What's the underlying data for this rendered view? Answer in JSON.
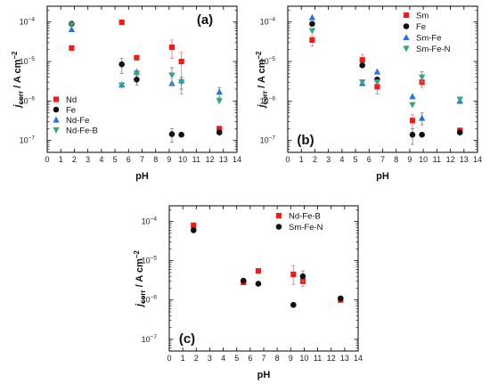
{
  "colors": {
    "red": "#e8201c",
    "black": "#111111",
    "blue": "#2d73d6",
    "green": "#3aa386",
    "error_grey": "#888888",
    "error_red": "#f08080"
  },
  "chart_data": [
    {
      "type": "scatter",
      "panel_label": "(a)",
      "xlabel": "pH",
      "ylabel": "j_corr / A cm^-2",
      "ylabel_parts": {
        "j": "j",
        "sub": "corr",
        "units": " / A cm",
        "sup": "−2"
      },
      "xlim": [
        0,
        14
      ],
      "ylim_log10": [
        -7.3,
        -3.6
      ],
      "x_ticks": [
        0,
        1,
        2,
        3,
        4,
        5,
        6,
        7,
        8,
        9,
        10,
        11,
        12,
        13,
        14
      ],
      "y_ticks": [
        {
          "exp": -7,
          "label": "10",
          "sup": "−7"
        },
        {
          "exp": -6,
          "label": "10",
          "sup": "−6"
        },
        {
          "exp": -5,
          "label": "10",
          "sup": "−5"
        },
        {
          "exp": -4,
          "label": "10",
          "sup": "−4"
        }
      ],
      "legend_position": "lower-left",
      "series": [
        {
          "name": "Nd",
          "marker": "square",
          "color": "red",
          "points": [
            {
              "x": 1.8,
              "y": 2.2e-05
            },
            {
              "x": 5.5,
              "y": 9.8e-05
            },
            {
              "x": 6.6,
              "y": 1.25e-05
            },
            {
              "x": 9.2,
              "y": 2.3e-05,
              "lo": 1.2e-05,
              "hi": 3.5e-05
            },
            {
              "x": 9.9,
              "y": 1e-05,
              "lo": 1.5e-06,
              "hi": 1.7e-05
            },
            {
              "x": 12.7,
              "y": 2e-07
            }
          ]
        },
        {
          "name": "Fe",
          "marker": "circle",
          "color": "black",
          "points": [
            {
              "x": 1.8,
              "y": 9e-05
            },
            {
              "x": 5.5,
              "y": 8.5e-06,
              "lo": 5e-06,
              "hi": 1.2e-05
            },
            {
              "x": 6.6,
              "y": 3.5e-06,
              "lo": 2.5e-06,
              "hi": 4.5e-06
            },
            {
              "x": 9.2,
              "y": 1.45e-07,
              "lo": 9e-08,
              "hi": 2e-07
            },
            {
              "x": 9.9,
              "y": 1.4e-07
            },
            {
              "x": 12.7,
              "y": 1.6e-07
            }
          ]
        },
        {
          "name": "Nd-Fe",
          "marker": "triangle-up",
          "color": "blue",
          "points": [
            {
              "x": 1.8,
              "y": 6.5e-05
            },
            {
              "x": 5.5,
              "y": 2.6e-06
            },
            {
              "x": 6.6,
              "y": 5.5e-06
            },
            {
              "x": 9.2,
              "y": 2.8e-06
            },
            {
              "x": 9.9,
              "y": 3.3e-06
            },
            {
              "x": 12.7,
              "y": 1.7e-06,
              "lo": 1.2e-06,
              "hi": 2.2e-06
            }
          ]
        },
        {
          "name": "Nd-Fe-B",
          "marker": "triangle-down",
          "color": "green",
          "points": [
            {
              "x": 1.8,
              "y": 8.5e-05
            },
            {
              "x": 5.5,
              "y": 2.5e-06
            },
            {
              "x": 6.6,
              "y": 5e-06
            },
            {
              "x": 9.2,
              "y": 4.5e-06,
              "lo": 2.5e-06,
              "hi": 7e-06
            },
            {
              "x": 9.9,
              "y": 3e-06,
              "lo": 2e-06,
              "hi": 4e-06
            },
            {
              "x": 12.7,
              "y": 1e-06
            }
          ]
        }
      ]
    },
    {
      "type": "scatter",
      "panel_label": "(b)",
      "xlabel": "pH",
      "ylabel": "j_corr / A cm^-2",
      "ylabel_parts": {
        "j": "j",
        "sub": "corr",
        "units": " / A cm",
        "sup": "−2"
      },
      "xlim": [
        0,
        14
      ],
      "ylim_log10": [
        -7.3,
        -3.6
      ],
      "x_ticks": [
        0,
        1,
        2,
        3,
        4,
        5,
        6,
        7,
        8,
        9,
        10,
        11,
        12,
        13,
        14
      ],
      "y_ticks": [
        {
          "exp": -7,
          "label": "10",
          "sup": "−7"
        },
        {
          "exp": -6,
          "label": "10",
          "sup": "−6"
        },
        {
          "exp": -5,
          "label": "10",
          "sup": "−5"
        },
        {
          "exp": -4,
          "label": "10",
          "sup": "−4"
        }
      ],
      "legend_position": "top-right",
      "series": [
        {
          "name": "Sm",
          "marker": "square",
          "color": "red",
          "points": [
            {
              "x": 1.8,
              "y": 3.5e-05,
              "lo": 2.5e-05,
              "hi": 4.5e-05
            },
            {
              "x": 5.5,
              "y": 1.1e-05,
              "lo": 8e-06,
              "hi": 1.5e-05
            },
            {
              "x": 6.6,
              "y": 2.3e-06,
              "lo": 1.5e-06,
              "hi": 3.5e-06
            },
            {
              "x": 9.2,
              "y": 3.2e-07,
              "lo": 2e-07,
              "hi": 4.5e-07
            },
            {
              "x": 9.9,
              "y": 3e-06,
              "lo": 2.2e-06,
              "hi": 4e-06
            },
            {
              "x": 12.7,
              "y": 1.8e-07
            }
          ]
        },
        {
          "name": "Fe",
          "marker": "circle",
          "color": "black",
          "points": [
            {
              "x": 1.8,
              "y": 9e-05
            },
            {
              "x": 5.5,
              "y": 8e-06
            },
            {
              "x": 6.6,
              "y": 3.5e-06
            },
            {
              "x": 9.2,
              "y": 1.4e-07,
              "lo": 8e-08,
              "hi": 2e-07
            },
            {
              "x": 9.9,
              "y": 1.4e-07
            },
            {
              "x": 12.7,
              "y": 1.6e-07
            }
          ]
        },
        {
          "name": "Sm-Fe",
          "marker": "triangle-up",
          "color": "blue",
          "points": [
            {
              "x": 1.8,
              "y": 0.00013
            },
            {
              "x": 5.5,
              "y": 2.8e-06
            },
            {
              "x": 6.6,
              "y": 5.5e-06
            },
            {
              "x": 9.2,
              "y": 1.3e-06
            },
            {
              "x": 9.9,
              "y": 3.7e-07,
              "lo": 2.5e-07,
              "hi": 5e-07
            },
            {
              "x": 12.7,
              "y": 1e-06
            }
          ]
        },
        {
          "name": "Sm-Fe-N",
          "marker": "triangle-down",
          "color": "green",
          "points": [
            {
              "x": 1.8,
              "y": 6e-05
            },
            {
              "x": 5.5,
              "y": 3e-06
            },
            {
              "x": 6.6,
              "y": 3e-06
            },
            {
              "x": 9.2,
              "y": 8e-07
            },
            {
              "x": 9.9,
              "y": 4e-06,
              "lo": 3e-06,
              "hi": 5.5e-06
            },
            {
              "x": 12.7,
              "y": 1.1e-06
            }
          ]
        }
      ]
    },
    {
      "type": "scatter",
      "panel_label": "(c)",
      "xlabel": "pH",
      "ylabel": "j_corr / A cm^-2",
      "ylabel_parts": {
        "j": "j",
        "sub": "corr",
        "units": " / A cm",
        "sup": "−2"
      },
      "xlim": [
        0,
        14
      ],
      "ylim_log10": [
        -7.3,
        -3.6
      ],
      "x_ticks": [
        0,
        1,
        2,
        3,
        4,
        5,
        6,
        7,
        8,
        9,
        10,
        11,
        12,
        13,
        14
      ],
      "y_ticks": [
        {
          "exp": -7,
          "label": "10",
          "sup": "−7"
        },
        {
          "exp": -6,
          "label": "10",
          "sup": "−6"
        },
        {
          "exp": -5,
          "label": "10",
          "sup": "−5"
        },
        {
          "exp": -4,
          "label": "10",
          "sup": "−4"
        }
      ],
      "legend_position": "top-right",
      "series": [
        {
          "name": "Nd-Fe-B",
          "marker": "square",
          "color": "red",
          "points": [
            {
              "x": 1.8,
              "y": 8e-05
            },
            {
              "x": 5.5,
              "y": 2.8e-06
            },
            {
              "x": 6.6,
              "y": 5.5e-06
            },
            {
              "x": 9.2,
              "y": 4.5e-06,
              "lo": 2.5e-06,
              "hi": 7.5e-06
            },
            {
              "x": 9.9,
              "y": 3e-06,
              "lo": 2.2e-06,
              "hi": 4e-06
            },
            {
              "x": 12.7,
              "y": 1e-06
            }
          ]
        },
        {
          "name": "Sm-Fe-N",
          "marker": "circle",
          "color": "black",
          "points": [
            {
              "x": 1.8,
              "y": 6e-05
            },
            {
              "x": 5.5,
              "y": 3.1e-06
            },
            {
              "x": 6.6,
              "y": 2.6e-06
            },
            {
              "x": 9.2,
              "y": 7.5e-07
            },
            {
              "x": 9.9,
              "y": 4e-06,
              "lo": 3e-06,
              "hi": 5.5e-06
            },
            {
              "x": 12.7,
              "y": 1.1e-06
            }
          ]
        }
      ]
    }
  ]
}
